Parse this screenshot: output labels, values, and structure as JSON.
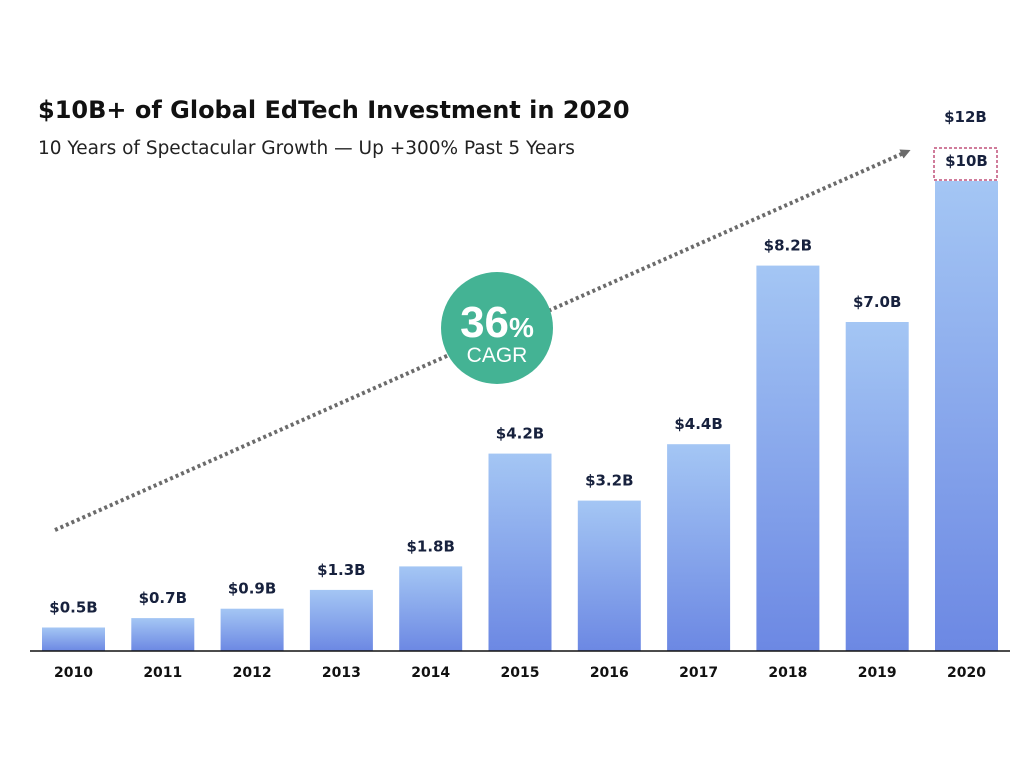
{
  "chart_data": {
    "type": "bar",
    "title": "$10B+ of Global EdTech Investment in 2020",
    "subtitle": "10 Years of Spectacular Growth — Up +300% Past 5 Years",
    "categories": [
      "2010",
      "2011",
      "2012",
      "2013",
      "2014",
      "2015",
      "2016",
      "2017",
      "2018",
      "2019",
      "2020"
    ],
    "values": [
      0.5,
      0.7,
      0.9,
      1.3,
      1.8,
      4.2,
      3.2,
      4.4,
      8.2,
      7.0,
      10
    ],
    "labels": [
      "$0.5B",
      "$0.7B",
      "$0.9B",
      "$1.3B",
      "$1.8B",
      "$4.2B",
      "$3.2B",
      "$4.4B",
      "$8.2B",
      "$7.0B",
      "$10B"
    ],
    "projection": {
      "category": "2020",
      "value": 12,
      "label": "$12B"
    },
    "annotation": {
      "value": "36",
      "unit": "%",
      "label": "CAGR"
    },
    "xlabel": "",
    "ylabel": "",
    "ylim": [
      0,
      12
    ],
    "grid": false,
    "legend": "none",
    "colors": {
      "bar_top": "#a4c6f4",
      "bar_bottom": "#6c88e3",
      "trend_arrow": "#6b6b6b",
      "cagr_badge": "#44b394",
      "projection_box": "#c0507a"
    }
  }
}
